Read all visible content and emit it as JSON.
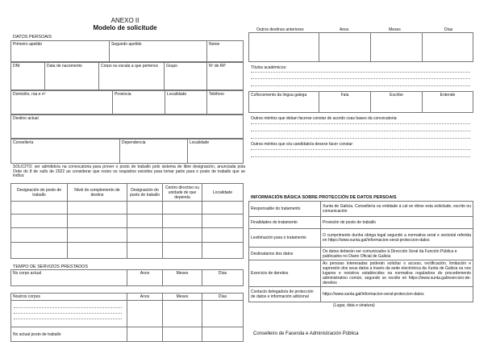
{
  "header": {
    "annex": "ANEXO II",
    "title": "Modelo de solicitude"
  },
  "personal": {
    "section": "DATOS PERSOAIS",
    "row1": [
      "Primeiro apelido",
      "Segundo apelido",
      "Nome"
    ],
    "row2": [
      "DNI",
      "Data de nacemento",
      "Corpo ou escala a que pertence",
      "Grupo",
      "Nº de RP"
    ],
    "row3": [
      "Domicilio, rúa e nº",
      "Provincia",
      "Localidade",
      "Teléfono"
    ],
    "row4": [
      "Destino actual"
    ],
    "row5": [
      "Consellería",
      "Dependencia",
      "Localidade"
    ]
  },
  "request": {
    "text": "SOLICITO: ser admitido/a na convocatoria para prover o posto de traballo polo sistema de libre designación, anunciada pola Orde do 8 de xullo de 2022 ao considerar que reúno os requisitos exixidos para tomar parte para o posto de traballo que se indica:",
    "columns": [
      "Designación do posto de traballo",
      "Nivel do complemento de destino",
      "Designación do posto de traballo",
      "Centro directivo ou unidade de que dependa",
      "Localidade"
    ]
  },
  "service": {
    "section": "TEMPO DE SERVIZOS PRESTADOS",
    "current": [
      "No corpo actual",
      "Anos",
      "Meses",
      "Días"
    ],
    "other": [
      "Noutros corpos",
      "Anos",
      "Meses",
      "Días"
    ],
    "current_post": "No actual posto de traballo"
  },
  "right": {
    "prev_dest": [
      "Outros destinos anteriores",
      "Anos",
      "Meses",
      "Días"
    ],
    "titles": "Títulos académicos:",
    "galician": [
      "Coñecemento da lingua galega",
      "Fala",
      "Escribe",
      "Entende"
    ],
    "merits1": "Outros méritos que deban facerse constar de acordo coas bases da convocatoria:",
    "merits2": "Outros méritos que o/a candidato/a desexe facer constar:"
  },
  "privacy": {
    "section": "INFORMACIÓN BÁSICA SOBRE PROTECCIÓN DE DATOS PERSOAIS",
    "rows": [
      {
        "k": "Responsable do tratamento",
        "v": "Xunta de Galicia. Consellería ou entidade á cal se dirixe esta solicitude, escrito ou comunicación"
      },
      {
        "k": "Finalidades do tratamento",
        "v": "Provisión de posto de traballo"
      },
      {
        "k": "Lexitimación para o tratamento",
        "v": "O cumprimento dunha obriga legal segundo a normativa xeral e sectorial referida en https://www.xunta.gal/informacion-xeral-proteccion-datos"
      },
      {
        "k": "Destinatarios dos datos",
        "v": "Os datos deberán ser comunicados á Dirección Xeral da Función Pública e publicados no Diario Oficial de Galicia"
      },
      {
        "k": "Exercicio de dereitos",
        "v": "As persoas interesadas poderán solicitar o acceso, rectificación, limitación e supresión dos seus datos a través da sede electrónica da Xunta de Galicia ou nos lugares e rexistros establecidos na normativa reguladora do procedemento administrativo común, segundo se recolle en https://www.xunta.gal/exercicio-de-dereitos"
      },
      {
        "k": "Contacto delegado/a de protección de datos e información adicional",
        "v": "https://www.xunta.gal/informacion-xeral-proteccion-datos"
      }
    ]
  },
  "signature": "(Lugar, data e sinatura)",
  "addressee": "Conselleiro de Facenda e Administración Pública"
}
